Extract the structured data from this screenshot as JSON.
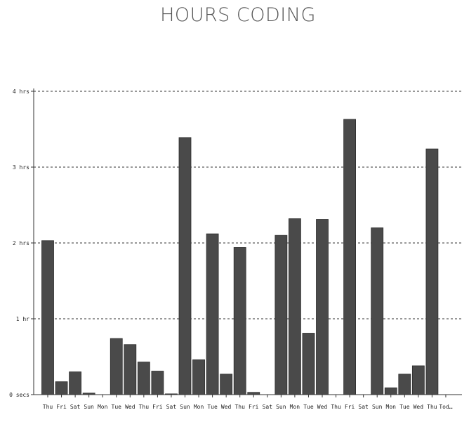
{
  "chart_data": {
    "type": "bar",
    "title": "HOURS CODING",
    "xlabel": "",
    "ylabel": "",
    "ylim": [
      0,
      4
    ],
    "y_ticks": [
      {
        "value": 0,
        "label": "0 secs"
      },
      {
        "value": 1,
        "label": "1 hr"
      },
      {
        "value": 2,
        "label": "2 hrs"
      },
      {
        "value": 3,
        "label": "3 hrs"
      },
      {
        "value": 4,
        "label": "4 hrs"
      }
    ],
    "grid": true,
    "bar_color": "#4a4a4a",
    "categories": [
      "Thu",
      "Fri",
      "Sat",
      "Sun",
      "Mon",
      "Tue",
      "Wed",
      "Thu",
      "Fri",
      "Sat",
      "Sun",
      "Mon",
      "Tue",
      "Wed",
      "Thu",
      "Fri",
      "Sat",
      "Sun",
      "Mon",
      "Tue",
      "Wed",
      "Thu",
      "Fri",
      "Sat",
      "Sun",
      "Mon",
      "Tue",
      "Wed",
      "Thu",
      "Tod…"
    ],
    "values": [
      2.03,
      0.17,
      0.3,
      0.02,
      0,
      0.74,
      0.66,
      0.43,
      0.31,
      0.01,
      3.39,
      0.46,
      2.12,
      0.27,
      1.94,
      0.03,
      0,
      2.1,
      2.32,
      0.81,
      2.31,
      0,
      3.63,
      0,
      2.2,
      0.09,
      0.27,
      0.38,
      3.24,
      0
    ]
  }
}
